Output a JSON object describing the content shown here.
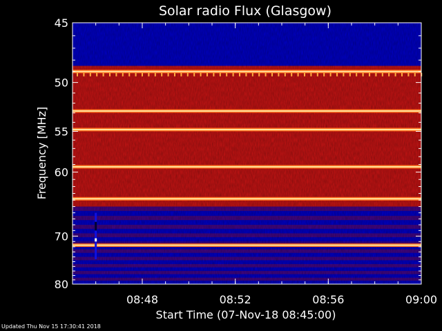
{
  "chart_data": {
    "type": "heatmap",
    "title": "Solar radio Flux (Glasgow)",
    "xlabel": "Start Time (07-Nov-18 08:45:00)",
    "ylabel": "Frequency [MHz]",
    "x_range": [
      "08:45",
      "09:00"
    ],
    "x_ticks": [
      "08:48",
      "08:52",
      "08:56",
      "09:00"
    ],
    "y_range": [
      45,
      80
    ],
    "y_scale": "reciprocal",
    "y_ticks": [
      45,
      50,
      55,
      60,
      70,
      80
    ],
    "background_level": "red",
    "quiet_bands_mhz": [
      [
        45,
        48.5
      ],
      [
        65,
        80
      ]
    ],
    "bright_lines_mhz": [
      49.0,
      52.8,
      54.8,
      59.3,
      63.8,
      71.7
    ],
    "colors": {
      "background": "#000000",
      "low": "#0000c8",
      "mid": "#c81414",
      "high": "#ffe6a0"
    }
  },
  "footer": {
    "updated": "Updated Thu Nov 15 17:30:41 2018"
  }
}
